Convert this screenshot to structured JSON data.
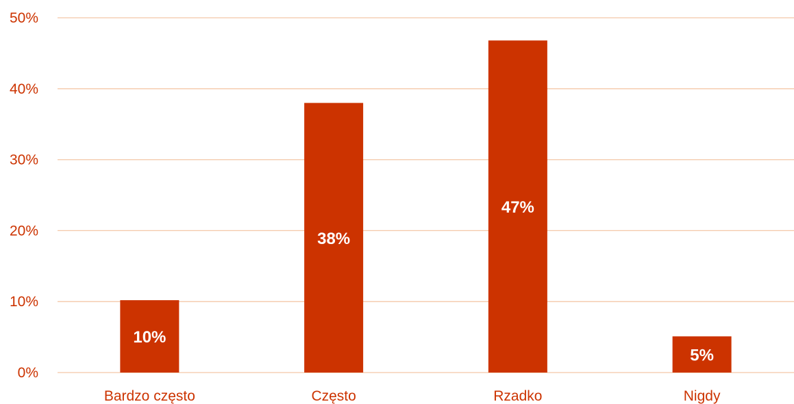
{
  "colors": {
    "bar": "#CC3300",
    "grid": "#F4C7A8",
    "axis_text": "#CC3300",
    "data_label": "#FFFFFF",
    "background": "#FFFFFF"
  },
  "chart_data": {
    "type": "bar",
    "title": "",
    "xlabel": "",
    "ylabel": "",
    "categories": [
      "Bardzo często",
      "Często",
      "Rzadko",
      "Nigdy"
    ],
    "values": [
      10.2,
      38,
      46.8,
      5.1
    ],
    "data_labels": [
      "10%",
      "38%",
      "47%",
      "5%"
    ],
    "ylim": [
      0,
      50
    ],
    "y_ticks": [
      0,
      10,
      20,
      30,
      40,
      50
    ],
    "y_tick_labels": [
      "0%",
      "10%",
      "20%",
      "30%",
      "40%",
      "50%"
    ],
    "grid": true,
    "legend": "none"
  }
}
